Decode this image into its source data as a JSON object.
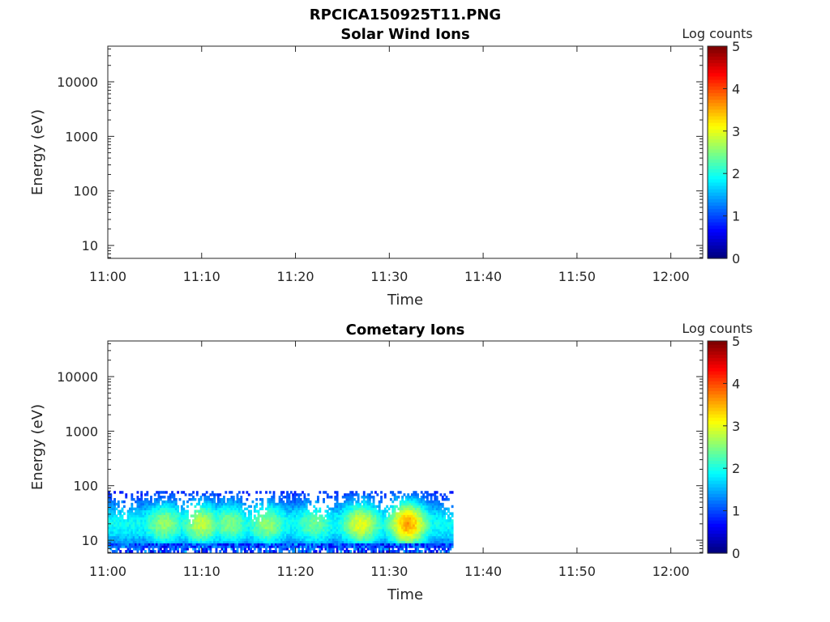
{
  "figure_title": "RPCICA150925T11.PNG",
  "chart_data": [
    {
      "type": "heatmap",
      "title": "Solar Wind Ions",
      "xlabel": "Time",
      "ylabel": "Energy (eV)",
      "x_ticks": [
        "11:00",
        "11:10",
        "11:20",
        "11:30",
        "11:40",
        "11:50",
        "12:00"
      ],
      "y_ticks": [
        "10",
        "100",
        "1000",
        "10000"
      ],
      "y_scale": "log",
      "colorbar": {
        "label": "Log counts",
        "ticks": [
          "0",
          "1",
          "2",
          "3",
          "4",
          "5"
        ],
        "range": [
          0,
          5
        ],
        "colormap": "jet"
      },
      "data_present": false
    },
    {
      "type": "heatmap",
      "title": "Cometary Ions",
      "xlabel": "Time",
      "ylabel": "Energy (eV)",
      "x_ticks": [
        "11:00",
        "11:10",
        "11:20",
        "11:30",
        "11:40",
        "11:50",
        "12:00"
      ],
      "y_ticks": [
        "10",
        "100",
        "1000",
        "10000"
      ],
      "y_scale": "log",
      "colorbar": {
        "label": "Log counts",
        "ticks": [
          "0",
          "1",
          "2",
          "3",
          "4",
          "5"
        ],
        "range": [
          0,
          5
        ],
        "colormap": "jet"
      },
      "data_present": true,
      "data_time_range": [
        "11:00",
        "11:36"
      ],
      "data_energy_range_eV": [
        6,
        80
      ],
      "peak_energy_eV": 20,
      "peak_times": [
        "11:06",
        "11:10",
        "11:13",
        "11:17",
        "11:22",
        "11:27",
        "11:32"
      ],
      "peak_log_counts": [
        2.6,
        2.8,
        2.5,
        2.6,
        2.4,
        3.0,
        3.6
      ]
    }
  ]
}
